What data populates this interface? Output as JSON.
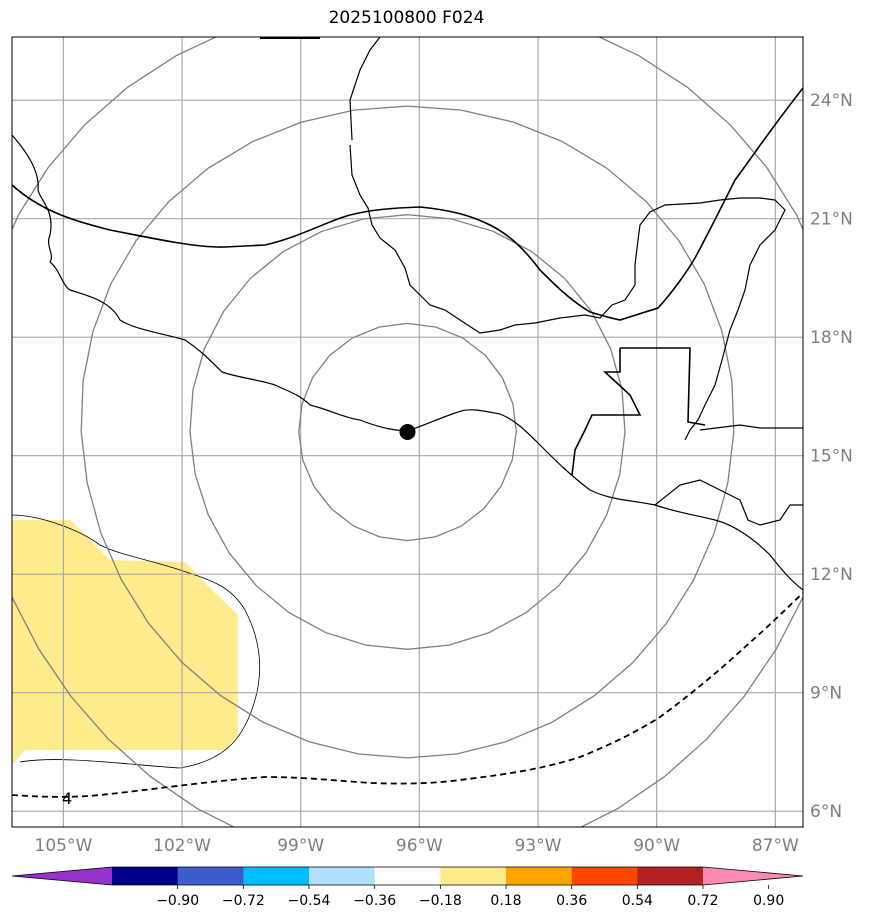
{
  "title": "2025100800 F024",
  "map": {
    "lon_range": [
      -106.3,
      -86.3
    ],
    "lat_range": [
      5.6,
      25.6
    ],
    "lon_ticks": [
      -105,
      -102,
      -99,
      -96,
      -93,
      -90,
      -87
    ],
    "lon_tick_labels": [
      "105°W",
      "102°W",
      "99°W",
      "96°W",
      "93°W",
      "90°W",
      "87°W"
    ],
    "lat_ticks": [
      6,
      9,
      12,
      15,
      18,
      21,
      24
    ],
    "lat_tick_labels": [
      "6°N",
      "9°N",
      "12°N",
      "15°N",
      "18°N",
      "21°N",
      "24°N"
    ],
    "grid": true,
    "center_marker": {
      "lon": -96.3,
      "lat": 15.6
    },
    "range_rings_deg": [
      2.75,
      5.5,
      8.25,
      11.0
    ],
    "contour_label": "4",
    "shaded_bin": "0.18 to 0.36"
  },
  "colorbar": {
    "labels": [
      "−0.90",
      "−0.72",
      "−0.54",
      "−0.36",
      "−0.18",
      "0.18",
      "0.36",
      "0.54",
      "0.72",
      "0.90"
    ],
    "colors": [
      "#9932cc",
      "#00008b",
      "#3c5ccc",
      "#00bfff",
      "#b0e0ff",
      "#ffffff",
      "#ffea8c",
      "#ffa500",
      "#ff4500",
      "#b22222",
      "#ff89b5"
    ],
    "extend": "both"
  }
}
